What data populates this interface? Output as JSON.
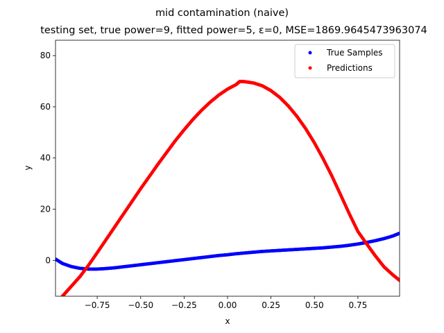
{
  "chart_data": {
    "type": "scatter",
    "suptitle": "mid contamination (naive)",
    "title": "testing set, true power=9, fitted power=5, ε=0, MSE=1869.9645473963074",
    "xlabel": "x",
    "ylabel": "y",
    "xlim": [
      -0.99,
      0.99
    ],
    "ylim": [
      -14,
      86
    ],
    "xticks": [
      -0.75,
      -0.5,
      -0.25,
      0.0,
      0.25,
      0.5,
      0.75
    ],
    "xtick_labels": [
      "−0.75",
      "−0.50",
      "−0.25",
      "0.00",
      "0.25",
      "0.50",
      "0.75"
    ],
    "yticks": [
      0,
      20,
      40,
      60,
      80
    ],
    "ytick_labels": [
      "0",
      "20",
      "40",
      "60",
      "80"
    ],
    "grid": false,
    "legend_position": "top-right",
    "series": [
      {
        "name": "True Samples",
        "color": "#0000ff",
        "points": [
          [
            -0.99,
            0.5
          ],
          [
            -0.95,
            -1.2
          ],
          [
            -0.9,
            -2.4
          ],
          [
            -0.85,
            -3.1
          ],
          [
            -0.8,
            -3.4
          ],
          [
            -0.75,
            -3.4
          ],
          [
            -0.7,
            -3.2
          ],
          [
            -0.65,
            -2.9
          ],
          [
            -0.6,
            -2.5
          ],
          [
            -0.55,
            -2.1
          ],
          [
            -0.5,
            -1.7
          ],
          [
            -0.45,
            -1.3
          ],
          [
            -0.4,
            -0.9
          ],
          [
            -0.35,
            -0.5
          ],
          [
            -0.3,
            -0.1
          ],
          [
            -0.25,
            0.3
          ],
          [
            -0.2,
            0.7
          ],
          [
            -0.15,
            1.1
          ],
          [
            -0.1,
            1.5
          ],
          [
            -0.05,
            1.9
          ],
          [
            0.0,
            2.2
          ],
          [
            0.05,
            2.6
          ],
          [
            0.1,
            2.9
          ],
          [
            0.15,
            3.2
          ],
          [
            0.2,
            3.5
          ],
          [
            0.25,
            3.7
          ],
          [
            0.3,
            3.9
          ],
          [
            0.35,
            4.1
          ],
          [
            0.4,
            4.3
          ],
          [
            0.45,
            4.5
          ],
          [
            0.5,
            4.7
          ],
          [
            0.55,
            4.9
          ],
          [
            0.6,
            5.2
          ],
          [
            0.65,
            5.5
          ],
          [
            0.7,
            5.9
          ],
          [
            0.75,
            6.4
          ],
          [
            0.8,
            7.0
          ],
          [
            0.85,
            7.7
          ],
          [
            0.9,
            8.5
          ],
          [
            0.95,
            9.5
          ],
          [
            0.99,
            10.6
          ]
        ]
      },
      {
        "name": "Predictions",
        "color": "#ff0000",
        "points": [
          [
            -0.95,
            -14.0
          ],
          [
            -0.9,
            -10.2
          ],
          [
            -0.85,
            -6.4
          ],
          [
            -0.8,
            -1.9
          ],
          [
            -0.75,
            3.0
          ],
          [
            -0.7,
            8.0
          ],
          [
            -0.65,
            13.0
          ],
          [
            -0.6,
            18.0
          ],
          [
            -0.55,
            23.0
          ],
          [
            -0.5,
            28.0
          ],
          [
            -0.45,
            32.8
          ],
          [
            -0.4,
            37.6
          ],
          [
            -0.35,
            42.2
          ],
          [
            -0.3,
            46.8
          ],
          [
            -0.25,
            51.0
          ],
          [
            -0.2,
            55.0
          ],
          [
            -0.15,
            58.6
          ],
          [
            -0.1,
            61.8
          ],
          [
            -0.05,
            64.6
          ],
          [
            0.0,
            66.9
          ],
          [
            0.05,
            68.7
          ],
          [
            0.07,
            69.9
          ],
          [
            0.1,
            69.8
          ],
          [
            0.15,
            69.3
          ],
          [
            0.2,
            68.2
          ],
          [
            0.25,
            66.3
          ],
          [
            0.3,
            63.7
          ],
          [
            0.35,
            60.3
          ],
          [
            0.4,
            56.2
          ],
          [
            0.45,
            51.4
          ],
          [
            0.5,
            45.9
          ],
          [
            0.55,
            39.7
          ],
          [
            0.6,
            33.0
          ],
          [
            0.65,
            25.7
          ],
          [
            0.7,
            18.3
          ],
          [
            0.75,
            11.3
          ],
          [
            0.8,
            6.5
          ],
          [
            0.85,
            1.8
          ],
          [
            0.9,
            -2.5
          ],
          [
            0.95,
            -5.6
          ],
          [
            0.99,
            -7.8
          ]
        ]
      }
    ]
  }
}
